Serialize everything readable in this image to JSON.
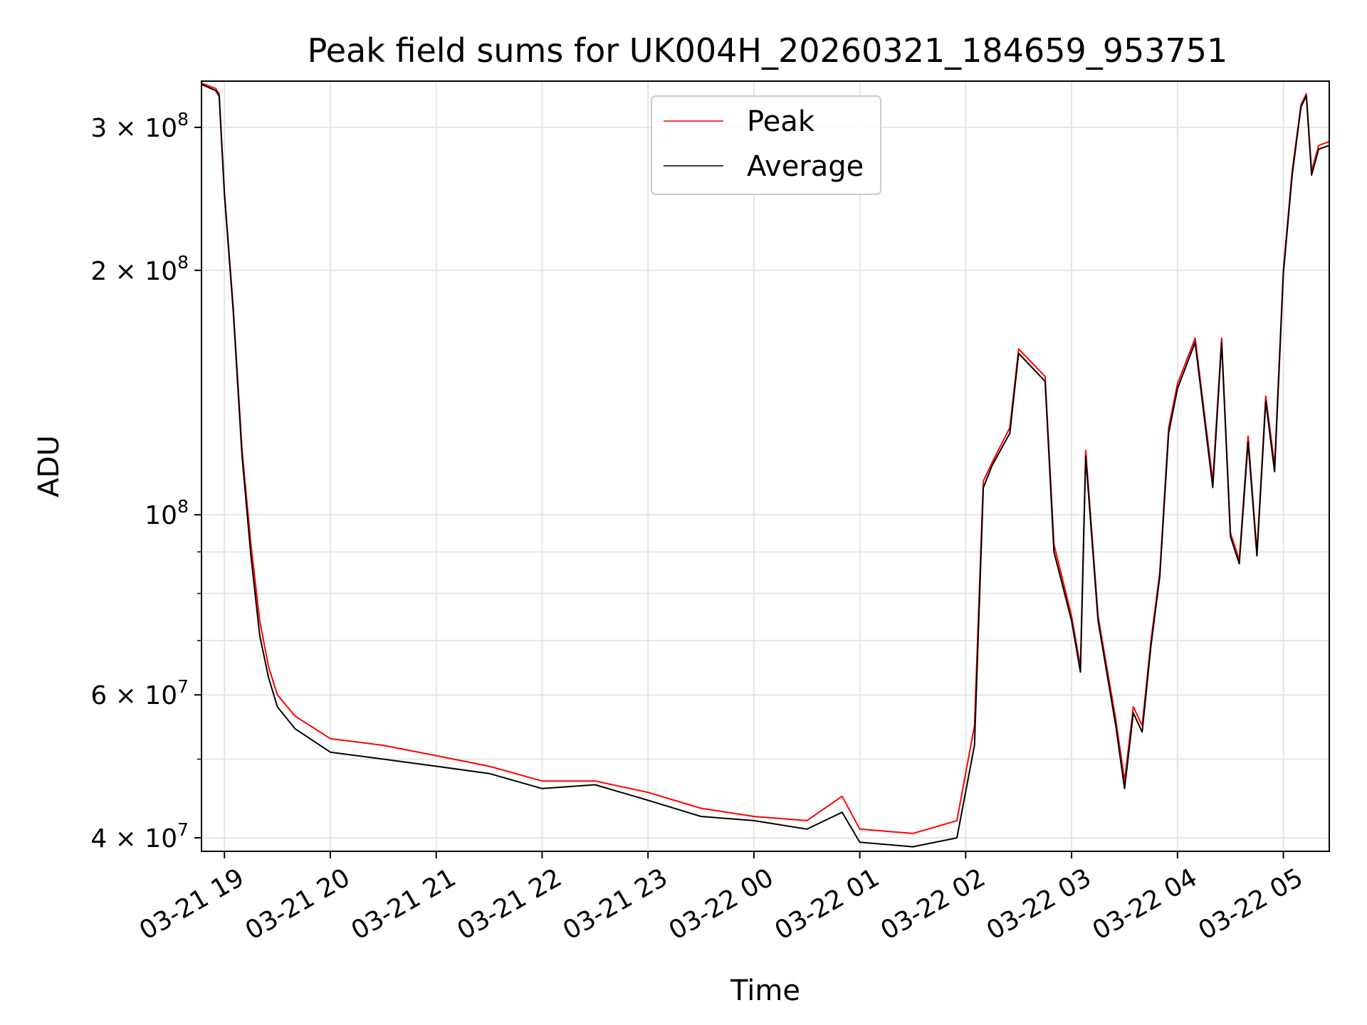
{
  "chart_data": {
    "type": "line",
    "title": "Peak field sums for UK004H_20260321_184659_953751",
    "xlabel": "Time",
    "ylabel": "ADU",
    "yscale": "log",
    "grid": true,
    "legend_position": "top-center",
    "xlim": [
      "2026-03-21 18:47",
      "2026-03-22 05:26"
    ],
    "ylim": [
      38500000,
      342000000
    ],
    "x_ticks": [
      "03-21 19",
      "03-21 20",
      "03-21 21",
      "03-21 22",
      "03-21 23",
      "03-22 00",
      "03-22 01",
      "03-22 02",
      "03-22 03",
      "03-22 04",
      "03-22 05"
    ],
    "y_ticks": [
      {
        "value": 40000000,
        "mantissa": "4",
        "exponent": "7"
      },
      {
        "value": 60000000,
        "mantissa": "6",
        "exponent": "7"
      },
      {
        "value": 100000000,
        "mantissa": "",
        "exponent": "8"
      },
      {
        "value": 200000000,
        "mantissa": "2",
        "exponent": "8"
      },
      {
        "value": 300000000,
        "mantissa": "3",
        "exponent": "8"
      }
    ],
    "series": [
      {
        "name": "Peak",
        "color": "#ff0000",
        "points": [
          [
            "2026-03-21 18:47",
            340000000
          ],
          [
            "2026-03-21 18:55",
            335000000
          ],
          [
            "2026-03-21 18:57",
            330000000
          ],
          [
            "2026-03-21 19:00",
            250000000
          ],
          [
            "2026-03-21 19:05",
            180000000
          ],
          [
            "2026-03-21 19:10",
            120000000
          ],
          [
            "2026-03-21 19:15",
            92000000
          ],
          [
            "2026-03-21 19:20",
            74000000
          ],
          [
            "2026-03-21 19:25",
            65000000
          ],
          [
            "2026-03-21 19:30",
            60000000
          ],
          [
            "2026-03-21 19:40",
            56500000
          ],
          [
            "2026-03-21 20:00",
            53000000
          ],
          [
            "2026-03-21 20:30",
            52000000
          ],
          [
            "2026-03-21 21:00",
            50500000
          ],
          [
            "2026-03-21 21:30",
            49000000
          ],
          [
            "2026-03-21 22:00",
            47000000
          ],
          [
            "2026-03-21 22:30",
            47000000
          ],
          [
            "2026-03-21 23:00",
            45500000
          ],
          [
            "2026-03-21 23:30",
            43500000
          ],
          [
            "2026-03-22 00:00",
            42500000
          ],
          [
            "2026-03-22 00:30",
            42000000
          ],
          [
            "2026-03-22 00:50",
            45000000
          ],
          [
            "2026-03-22 01:00",
            41000000
          ],
          [
            "2026-03-22 01:30",
            40500000
          ],
          [
            "2026-03-22 01:55",
            42000000
          ],
          [
            "2026-03-22 02:05",
            55000000
          ],
          [
            "2026-03-22 02:10",
            110000000
          ],
          [
            "2026-03-22 02:15",
            116000000
          ],
          [
            "2026-03-22 02:25",
            128000000
          ],
          [
            "2026-03-22 02:30",
            160000000
          ],
          [
            "2026-03-22 02:45",
            148000000
          ],
          [
            "2026-03-22 02:50",
            92000000
          ],
          [
            "2026-03-22 03:00",
            75000000
          ],
          [
            "2026-03-22 03:05",
            65000000
          ],
          [
            "2026-03-22 03:08",
            120000000
          ],
          [
            "2026-03-22 03:15",
            75000000
          ],
          [
            "2026-03-22 03:25",
            56000000
          ],
          [
            "2026-03-22 03:30",
            47000000
          ],
          [
            "2026-03-22 03:35",
            58000000
          ],
          [
            "2026-03-22 03:40",
            55000000
          ],
          [
            "2026-03-22 03:45",
            70000000
          ],
          [
            "2026-03-22 03:50",
            85000000
          ],
          [
            "2026-03-22 03:55",
            128000000
          ],
          [
            "2026-03-22 04:00",
            145000000
          ],
          [
            "2026-03-22 04:10",
            165000000
          ],
          [
            "2026-03-22 04:20",
            110000000
          ],
          [
            "2026-03-22 04:25",
            165000000
          ],
          [
            "2026-03-22 04:30",
            95000000
          ],
          [
            "2026-03-22 04:35",
            88000000
          ],
          [
            "2026-03-22 04:40",
            125000000
          ],
          [
            "2026-03-22 04:45",
            90000000
          ],
          [
            "2026-03-22 04:50",
            140000000
          ],
          [
            "2026-03-22 04:55",
            115000000
          ],
          [
            "2026-03-22 05:00",
            200000000
          ],
          [
            "2026-03-22 05:05",
            265000000
          ],
          [
            "2026-03-22 05:10",
            320000000
          ],
          [
            "2026-03-22 05:13",
            330000000
          ],
          [
            "2026-03-22 05:16",
            265000000
          ],
          [
            "2026-03-22 05:20",
            285000000
          ],
          [
            "2026-03-22 05:26",
            288000000
          ]
        ]
      },
      {
        "name": "Average",
        "color": "#000000",
        "points": [
          [
            "2026-03-21 18:47",
            339000000
          ],
          [
            "2026-03-21 18:55",
            333000000
          ],
          [
            "2026-03-21 18:57",
            328000000
          ],
          [
            "2026-03-21 19:00",
            248000000
          ],
          [
            "2026-03-21 19:05",
            178000000
          ],
          [
            "2026-03-21 19:10",
            118000000
          ],
          [
            "2026-03-21 19:15",
            89000000
          ],
          [
            "2026-03-21 19:20",
            71000000
          ],
          [
            "2026-03-21 19:25",
            63000000
          ],
          [
            "2026-03-21 19:30",
            58000000
          ],
          [
            "2026-03-21 19:40",
            54500000
          ],
          [
            "2026-03-21 20:00",
            51000000
          ],
          [
            "2026-03-21 20:30",
            50000000
          ],
          [
            "2026-03-21 21:00",
            49000000
          ],
          [
            "2026-03-21 21:30",
            48000000
          ],
          [
            "2026-03-21 22:00",
            46000000
          ],
          [
            "2026-03-21 22:30",
            46500000
          ],
          [
            "2026-03-21 23:00",
            44500000
          ],
          [
            "2026-03-21 23:30",
            42500000
          ],
          [
            "2026-03-22 00:00",
            42000000
          ],
          [
            "2026-03-22 00:30",
            41000000
          ],
          [
            "2026-03-22 00:50",
            43000000
          ],
          [
            "2026-03-22 01:00",
            39500000
          ],
          [
            "2026-03-22 01:30",
            39000000
          ],
          [
            "2026-03-22 01:55",
            40000000
          ],
          [
            "2026-03-22 02:05",
            52000000
          ],
          [
            "2026-03-22 02:10",
            108000000
          ],
          [
            "2026-03-22 02:15",
            115000000
          ],
          [
            "2026-03-22 02:25",
            126000000
          ],
          [
            "2026-03-22 02:30",
            158000000
          ],
          [
            "2026-03-22 02:45",
            146000000
          ],
          [
            "2026-03-22 02:50",
            90000000
          ],
          [
            "2026-03-22 03:00",
            74000000
          ],
          [
            "2026-03-22 03:05",
            64000000
          ],
          [
            "2026-03-22 03:08",
            118000000
          ],
          [
            "2026-03-22 03:15",
            74000000
          ],
          [
            "2026-03-22 03:25",
            55000000
          ],
          [
            "2026-03-22 03:30",
            46000000
          ],
          [
            "2026-03-22 03:35",
            57000000
          ],
          [
            "2026-03-22 03:40",
            54000000
          ],
          [
            "2026-03-22 03:45",
            69000000
          ],
          [
            "2026-03-22 03:50",
            84000000
          ],
          [
            "2026-03-22 03:55",
            126000000
          ],
          [
            "2026-03-22 04:00",
            143000000
          ],
          [
            "2026-03-22 04:10",
            163000000
          ],
          [
            "2026-03-22 04:20",
            108000000
          ],
          [
            "2026-03-22 04:25",
            163000000
          ],
          [
            "2026-03-22 04:30",
            94000000
          ],
          [
            "2026-03-22 04:35",
            87000000
          ],
          [
            "2026-03-22 04:40",
            123000000
          ],
          [
            "2026-03-22 04:45",
            89000000
          ],
          [
            "2026-03-22 04:50",
            138000000
          ],
          [
            "2026-03-22 04:55",
            113000000
          ],
          [
            "2026-03-22 05:00",
            198000000
          ],
          [
            "2026-03-22 05:05",
            262000000
          ],
          [
            "2026-03-22 05:10",
            318000000
          ],
          [
            "2026-03-22 05:13",
            328000000
          ],
          [
            "2026-03-22 05:16",
            262000000
          ],
          [
            "2026-03-22 05:20",
            282000000
          ],
          [
            "2026-03-22 05:26",
            285000000
          ]
        ]
      }
    ]
  }
}
